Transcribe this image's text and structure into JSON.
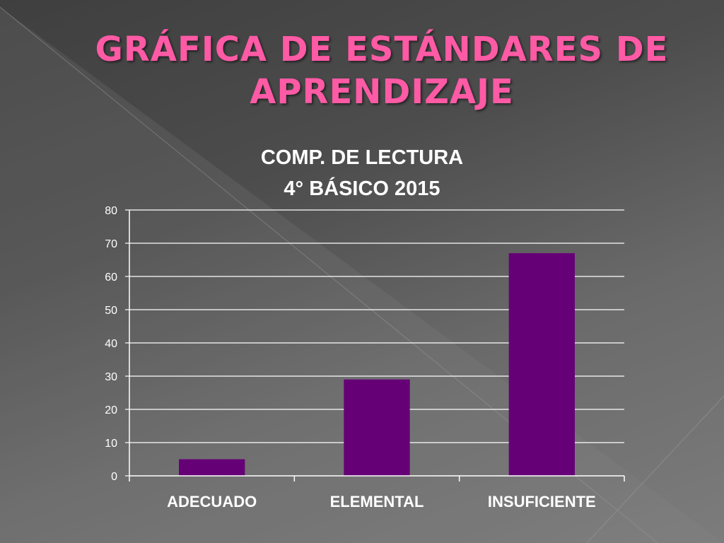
{
  "slide": {
    "title": "GRÁFICA DE ESTÁNDARES DE APRENDIZAJE",
    "title_color": "#ff5aa5"
  },
  "chart_data": {
    "type": "bar",
    "title_lines": [
      "COMP. DE LECTURA",
      "4° BÁSICO 2015"
    ],
    "categories": [
      "ADECUADO",
      "ELEMENTAL",
      "INSUFICIENTE"
    ],
    "values": [
      5,
      29,
      67
    ],
    "ylim": [
      0,
      80
    ],
    "yticks": [
      0,
      10,
      20,
      30,
      40,
      50,
      60,
      70,
      80
    ],
    "grid": true,
    "legend": "none",
    "bar_color": "#660077"
  }
}
